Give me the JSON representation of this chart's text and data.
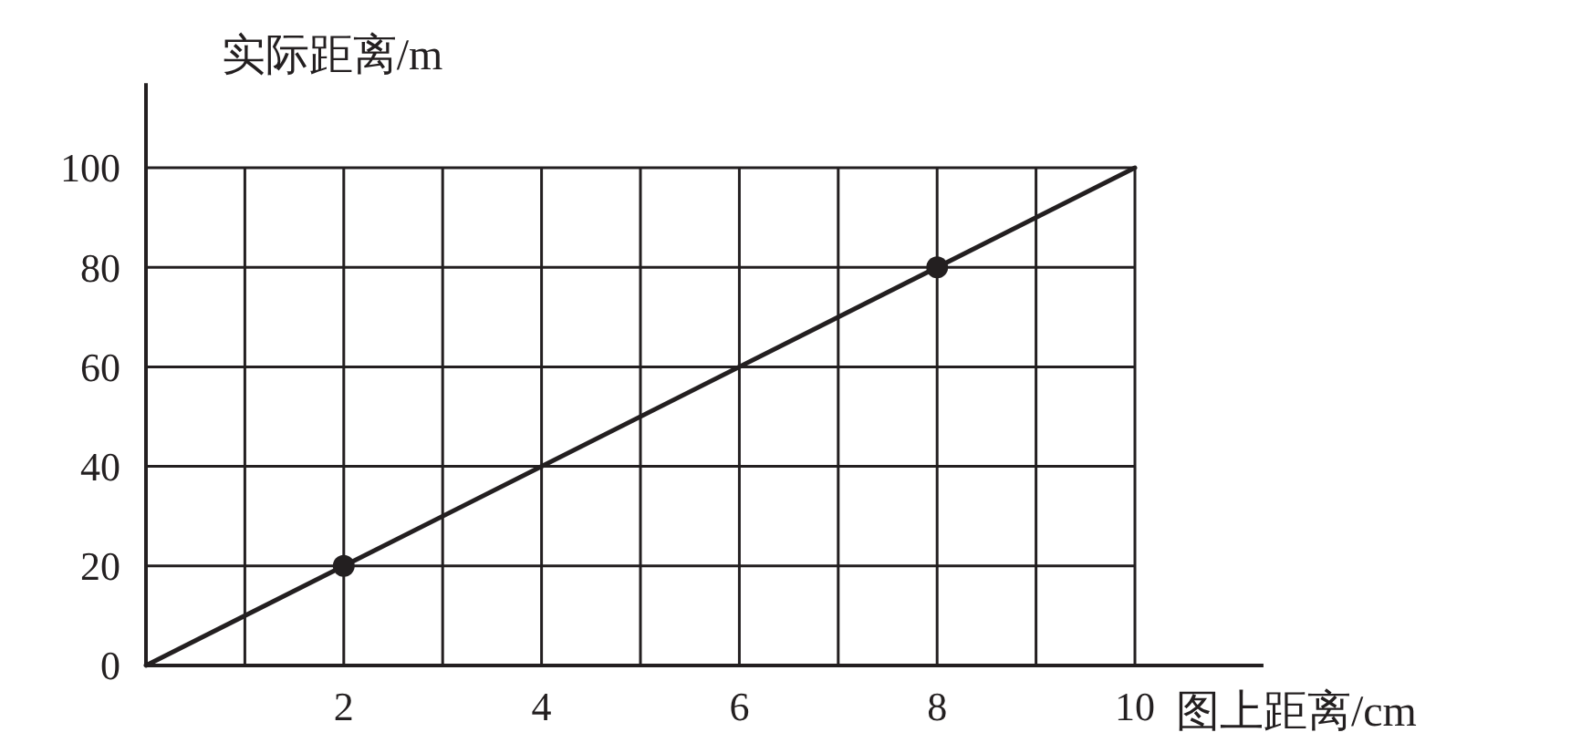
{
  "chart_data": {
    "type": "line",
    "xlabel": "图上距离/cm",
    "ylabel": "实际距离/m",
    "xlim": [
      0,
      11.3
    ],
    "ylim": [
      0,
      117
    ],
    "xticks": [
      {
        "value": 1,
        "label": null
      },
      2,
      {
        "value": 3,
        "label": null
      },
      4,
      {
        "value": 5,
        "label": null
      },
      6,
      {
        "value": 7,
        "label": null
      },
      8,
      {
        "value": 9,
        "label": null
      },
      10
    ],
    "yticks": [
      0,
      20,
      40,
      60,
      80,
      100
    ],
    "grid": true,
    "series": [
      {
        "x": [
          0,
          10
        ],
        "values": [
          0,
          100
        ],
        "color": "#231f20",
        "marker": "none"
      },
      {
        "type": "scatter",
        "x": [
          2,
          8
        ],
        "values": [
          20,
          80
        ],
        "color": "#231f20",
        "marker": "circle"
      }
    ]
  }
}
